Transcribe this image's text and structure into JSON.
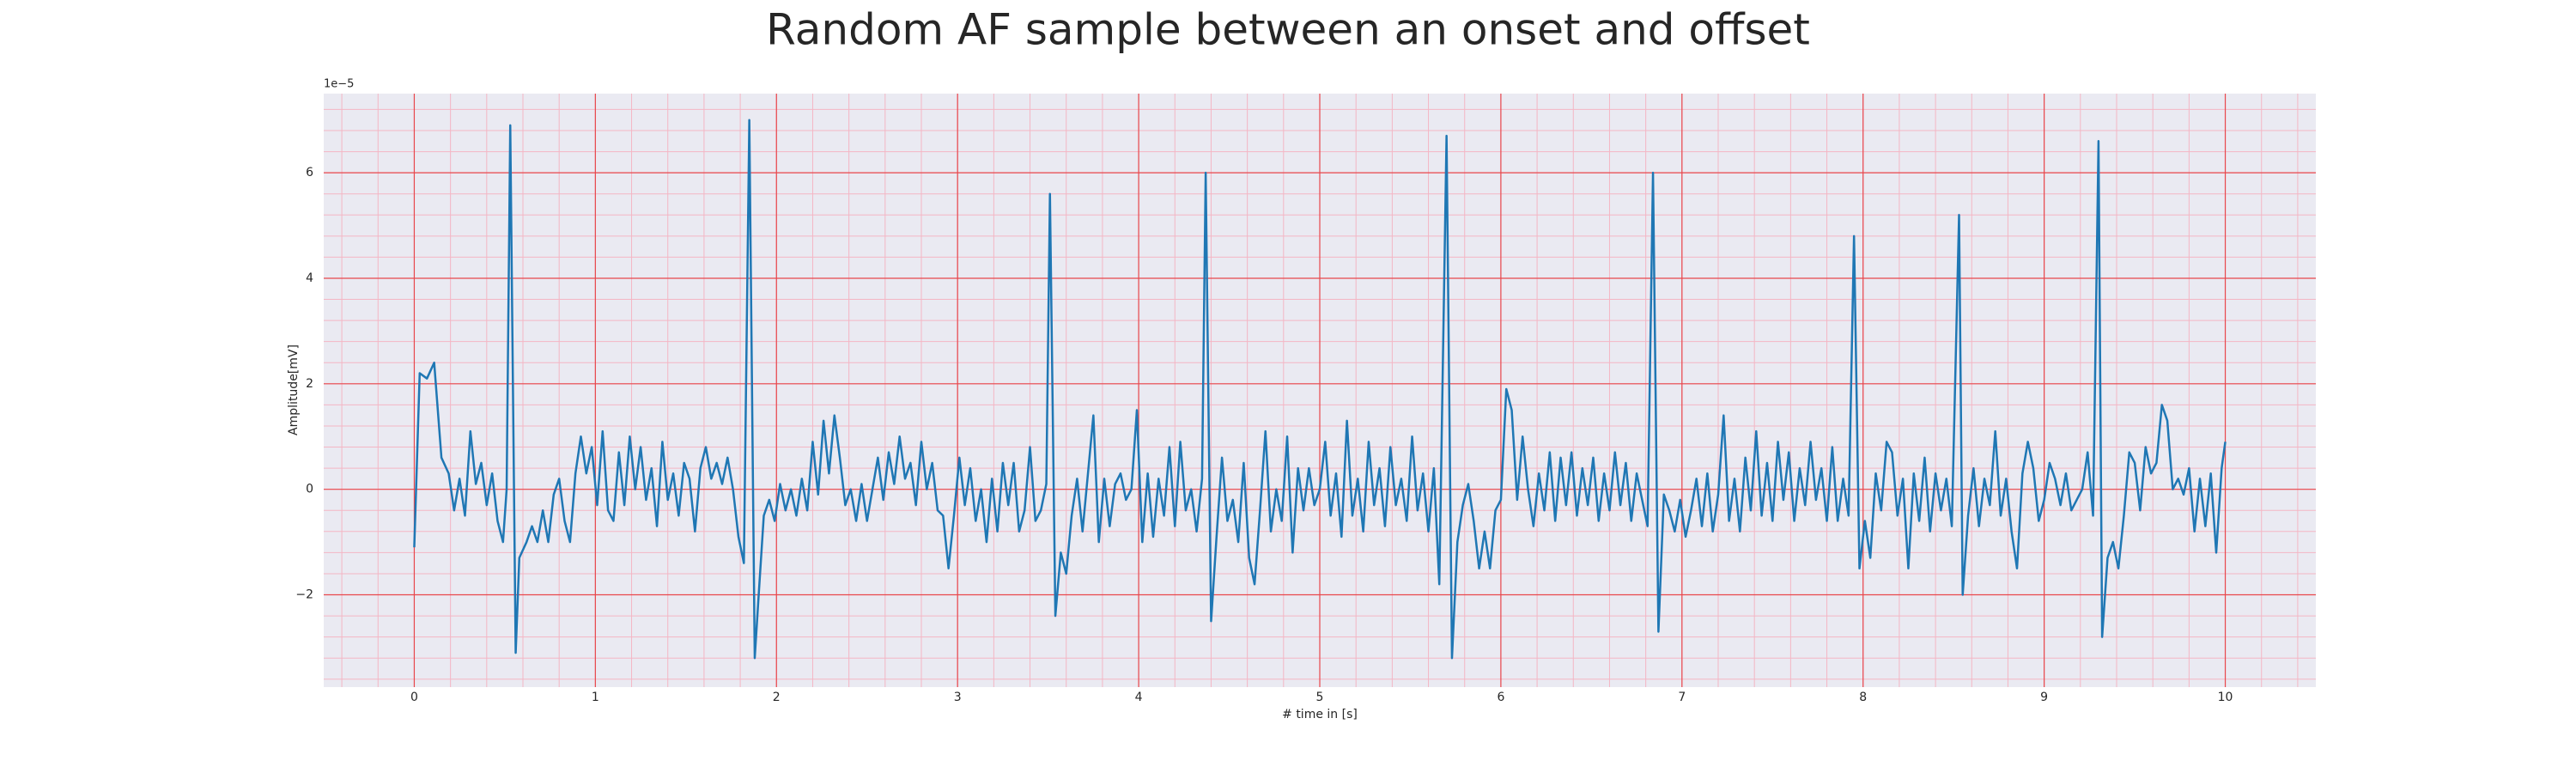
{
  "chart_data": {
    "type": "line",
    "title": "Random AF sample between an onset and offset",
    "xlabel": "# time in [s]",
    "ylabel": "Amplitude[mV]",
    "y_offset_label": "1e−5",
    "color": "#1f77b4",
    "grid": true,
    "minor_grid": true,
    "xlim": [
      -0.5,
      10.5
    ],
    "ylim": [
      -3.75,
      7.5
    ],
    "xticks": [
      0,
      1,
      2,
      3,
      4,
      5,
      6,
      7,
      8,
      9,
      10
    ],
    "yticks": [
      {
        "value": -2,
        "label": "−2"
      },
      0,
      2,
      4,
      6
    ],
    "x": [
      0,
      0.03,
      0.07,
      0.11,
      0.15,
      0.19,
      0.22,
      0.25,
      0.28,
      0.31,
      0.34,
      0.37,
      0.4,
      0.43,
      0.46,
      0.49,
      0.51,
      0.53,
      0.56,
      0.58,
      0.62,
      0.65,
      0.68,
      0.71,
      0.74,
      0.77,
      0.8,
      0.83,
      0.86,
      0.89,
      0.92,
      0.95,
      0.98,
      1.01,
      1.04,
      1.07,
      1.1,
      1.13,
      1.16,
      1.19,
      1.22,
      1.25,
      1.28,
      1.31,
      1.34,
      1.37,
      1.4,
      1.43,
      1.46,
      1.49,
      1.52,
      1.55,
      1.58,
      1.61,
      1.64,
      1.67,
      1.7,
      1.73,
      1.76,
      1.79,
      1.82,
      1.85,
      1.88,
      1.9,
      1.93,
      1.96,
      1.99,
      2.02,
      2.05,
      2.08,
      2.11,
      2.14,
      2.17,
      2.2,
      2.23,
      2.26,
      2.29,
      2.32,
      2.35,
      2.38,
      2.41,
      2.44,
      2.47,
      2.5,
      2.53,
      2.56,
      2.59,
      2.62,
      2.65,
      2.68,
      2.71,
      2.74,
      2.77,
      2.8,
      2.83,
      2.86,
      2.89,
      2.92,
      2.95,
      2.98,
      3.01,
      3.04,
      3.07,
      3.1,
      3.13,
      3.16,
      3.19,
      3.22,
      3.25,
      3.28,
      3.31,
      3.34,
      3.37,
      3.4,
      3.43,
      3.46,
      3.49,
      3.51,
      3.54,
      3.57,
      3.6,
      3.63,
      3.66,
      3.69,
      3.72,
      3.75,
      3.78,
      3.81,
      3.84,
      3.87,
      3.9,
      3.93,
      3.96,
      3.99,
      4.02,
      4.05,
      4.08,
      4.11,
      4.14,
      4.17,
      4.2,
      4.23,
      4.26,
      4.29,
      4.32,
      4.35,
      4.37,
      4.4,
      4.43,
      4.46,
      4.49,
      4.52,
      4.55,
      4.58,
      4.61,
      4.64,
      4.67,
      4.7,
      4.73,
      4.76,
      4.79,
      4.82,
      4.85,
      4.88,
      4.91,
      4.94,
      4.97,
      5,
      5.03,
      5.06,
      5.09,
      5.12,
      5.15,
      5.18,
      5.21,
      5.24,
      5.27,
      5.3,
      5.33,
      5.36,
      5.39,
      5.42,
      5.45,
      5.48,
      5.51,
      5.54,
      5.57,
      5.6,
      5.63,
      5.66,
      5.7,
      5.73,
      5.76,
      5.79,
      5.82,
      5.85,
      5.88,
      5.91,
      5.94,
      5.97,
      6,
      6.03,
      6.06,
      6.09,
      6.12,
      6.15,
      6.18,
      6.21,
      6.24,
      6.27,
      6.3,
      6.33,
      6.36,
      6.39,
      6.42,
      6.45,
      6.48,
      6.51,
      6.54,
      6.57,
      6.6,
      6.63,
      6.66,
      6.69,
      6.72,
      6.75,
      6.78,
      6.81,
      6.84,
      6.87,
      6.9,
      6.93,
      6.96,
      6.99,
      7.02,
      7.05,
      7.08,
      7.11,
      7.14,
      7.17,
      7.2,
      7.23,
      7.26,
      7.29,
      7.32,
      7.35,
      7.38,
      7.41,
      7.44,
      7.47,
      7.5,
      7.53,
      7.56,
      7.59,
      7.62,
      7.65,
      7.68,
      7.71,
      7.74,
      7.77,
      7.8,
      7.83,
      7.86,
      7.89,
      7.92,
      7.95,
      7.98,
      8.01,
      8.04,
      8.07,
      8.1,
      8.13,
      8.16,
      8.19,
      8.22,
      8.25,
      8.28,
      8.31,
      8.34,
      8.37,
      8.4,
      8.43,
      8.46,
      8.49,
      8.53,
      8.55,
      8.58,
      8.61,
      8.64,
      8.67,
      8.7,
      8.73,
      8.76,
      8.79,
      8.82,
      8.85,
      8.88,
      8.91,
      8.94,
      8.97,
      9,
      9.03,
      9.06,
      9.09,
      9.12,
      9.15,
      9.18,
      9.21,
      9.24,
      9.27,
      9.3,
      9.32,
      9.35,
      9.38,
      9.41,
      9.44,
      9.47,
      9.5,
      9.53,
      9.56,
      9.59,
      9.62,
      9.65,
      9.68,
      9.71,
      9.74,
      9.77,
      9.8,
      9.83,
      9.86,
      9.89,
      9.92,
      9.95,
      9.98,
      10
    ],
    "values": [
      -1.1,
      2.2,
      2.1,
      2.4,
      0.6,
      0.3,
      -0.4,
      0.2,
      -0.5,
      1.1,
      0.1,
      0.5,
      -0.3,
      0.3,
      -0.6,
      -1.0,
      0.0,
      6.9,
      -3.1,
      -1.3,
      -1.0,
      -0.7,
      -1.0,
      -0.4,
      -1.0,
      -0.1,
      0.2,
      -0.6,
      -1.0,
      0.3,
      1.0,
      0.3,
      0.8,
      -0.3,
      1.1,
      -0.4,
      -0.6,
      0.7,
      -0.3,
      1.0,
      0.0,
      0.8,
      -0.2,
      0.4,
      -0.7,
      0.9,
      -0.2,
      0.3,
      -0.5,
      0.5,
      0.2,
      -0.8,
      0.4,
      0.8,
      0.2,
      0.5,
      0.1,
      0.6,
      0.0,
      -0.9,
      -1.4,
      7.0,
      -3.2,
      -2.1,
      -0.5,
      -0.2,
      -0.6,
      0.1,
      -0.4,
      0.0,
      -0.5,
      0.2,
      -0.4,
      0.9,
      -0.1,
      1.3,
      0.3,
      1.4,
      0.6,
      -0.3,
      0.0,
      -0.6,
      0.1,
      -0.6,
      0.0,
      0.6,
      -0.2,
      0.7,
      0.1,
      1.0,
      0.2,
      0.5,
      -0.3,
      0.9,
      0.0,
      0.5,
      -0.4,
      -0.5,
      -1.5,
      -0.5,
      0.6,
      -0.3,
      0.4,
      -0.6,
      0.0,
      -1.0,
      0.2,
      -0.8,
      0.5,
      -0.3,
      0.5,
      -0.8,
      -0.4,
      0.8,
      -0.6,
      -0.4,
      0.1,
      5.6,
      -2.4,
      -1.2,
      -1.6,
      -0.5,
      0.2,
      -0.8,
      0.3,
      1.4,
      -1.0,
      0.2,
      -0.7,
      0.1,
      0.3,
      -0.2,
      0.0,
      1.5,
      -1.0,
      0.3,
      -0.9,
      0.2,
      -0.5,
      0.8,
      -0.7,
      0.9,
      -0.4,
      0.0,
      -0.8,
      0.2,
      6.0,
      -2.5,
      -0.9,
      0.6,
      -0.6,
      -0.2,
      -1.0,
      0.5,
      -1.3,
      -1.8,
      -0.4,
      1.1,
      -0.8,
      0.0,
      -0.6,
      1.0,
      -1.2,
      0.4,
      -0.4,
      0.4,
      -0.3,
      0.0,
      0.9,
      -0.5,
      0.3,
      -0.9,
      1.3,
      -0.5,
      0.2,
      -0.8,
      0.9,
      -0.3,
      0.4,
      -0.7,
      0.8,
      -0.3,
      0.2,
      -0.6,
      1.0,
      -0.4,
      0.3,
      -0.8,
      0.4,
      -1.8,
      6.7,
      -3.2,
      -1.0,
      -0.3,
      0.1,
      -0.6,
      -1.5,
      -0.8,
      -1.5,
      -0.4,
      -0.2,
      1.9,
      1.5,
      -0.2,
      1.0,
      0.0,
      -0.7,
      0.3,
      -0.4,
      0.7,
      -0.6,
      0.6,
      -0.3,
      0.7,
      -0.5,
      0.4,
      -0.3,
      0.6,
      -0.6,
      0.3,
      -0.4,
      0.7,
      -0.3,
      0.5,
      -0.6,
      0.3,
      -0.2,
      -0.7,
      6.0,
      -2.7,
      -0.1,
      -0.4,
      -0.8,
      -0.2,
      -0.9,
      -0.4,
      0.2,
      -0.7,
      0.3,
      -0.8,
      -0.1,
      1.4,
      -0.6,
      0.2,
      -0.8,
      0.6,
      -0.4,
      1.1,
      -0.5,
      0.5,
      -0.6,
      0.9,
      -0.2,
      0.7,
      -0.6,
      0.4,
      -0.3,
      0.9,
      -0.2,
      0.4,
      -0.6,
      0.8,
      -0.6,
      0.2,
      -0.5,
      4.8,
      -1.5,
      -0.6,
      -1.3,
      0.3,
      -0.4,
      0.9,
      0.7,
      -0.5,
      0.2,
      -1.5,
      0.3,
      -0.6,
      0.6,
      -0.8,
      0.3,
      -0.4,
      0.2,
      -0.7,
      5.2,
      -2.0,
      -0.5,
      0.4,
      -0.7,
      0.2,
      -0.3,
      1.1,
      -0.5,
      0.2,
      -0.8,
      -1.5,
      0.3,
      0.9,
      0.4,
      -0.6,
      -0.2,
      0.5,
      0.2,
      -0.3,
      0.3,
      -0.4,
      -0.2,
      0.0,
      0.7,
      -0.5,
      6.6,
      -2.8,
      -1.3,
      -1.0,
      -1.5,
      -0.5,
      0.7,
      0.5,
      -0.4,
      0.8,
      0.3,
      0.5,
      1.6,
      1.3,
      0.0,
      0.2,
      -0.1,
      0.4,
      -0.8,
      0.2,
      -0.7,
      0.3,
      -1.2,
      0.4,
      0.9
    ]
  }
}
